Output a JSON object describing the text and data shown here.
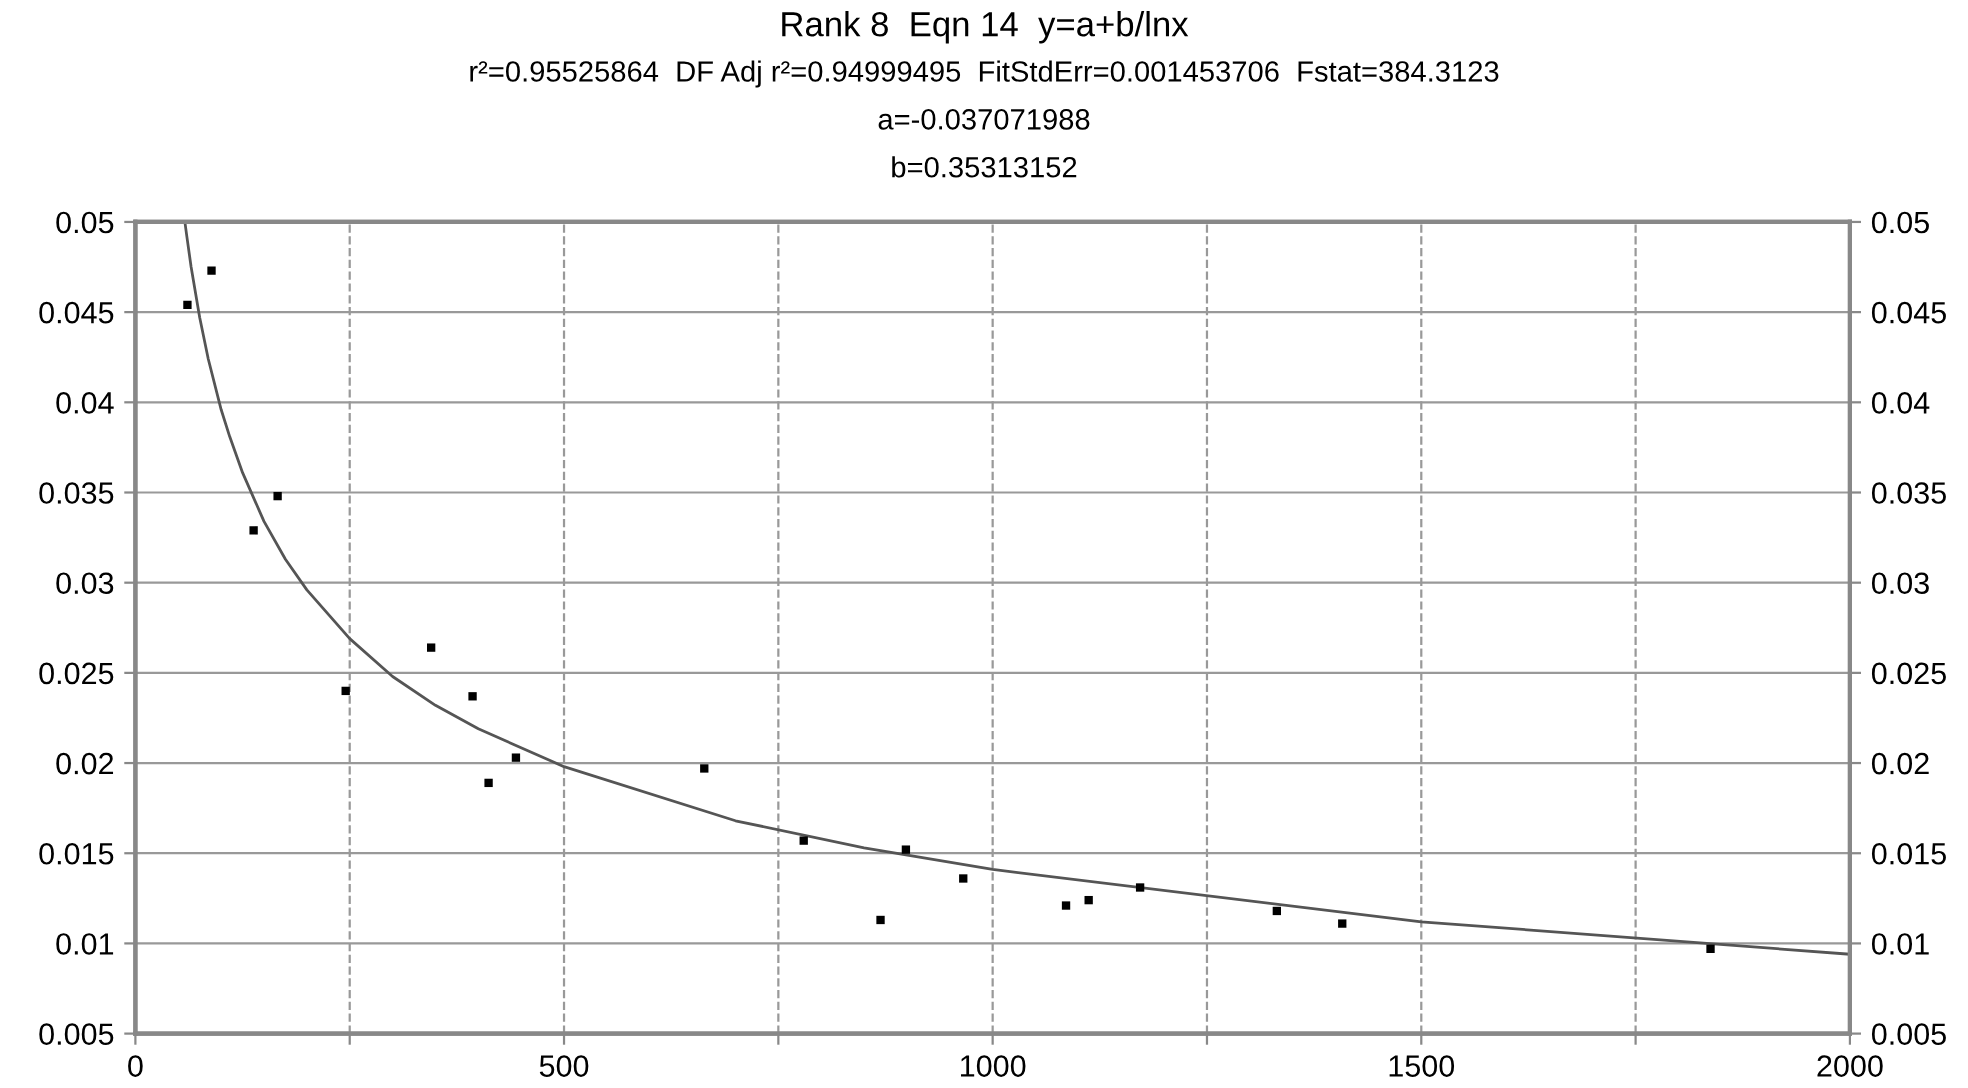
{
  "chart_data": {
    "type": "scatter",
    "title": "Rank 8  Eqn 14  y=a+b/lnx",
    "subtitle": "r²=0.95525864  DF Adj r²=0.94999495  FitStdErr=0.001453706  Fstat=384.3123",
    "annotations": [
      "a=-0.037071988",
      "b=0.35313152"
    ],
    "series": [
      {
        "color": "#000000",
        "marker": "square",
        "x": [
          60.7,
          88.8,
          137.9,
          165.9,
          245.3,
          345.0,
          393.3,
          412.0,
          443.9,
          663.6,
          779.6,
          869.2,
          898.8,
          965.7,
          1085.6,
          1112,
          1172,
          1331.5,
          1407.8,
          1837.4
        ],
        "values": [
          0.0454,
          0.0473,
          0.0329,
          0.0348,
          0.024,
          0.0264,
          0.0237,
          0.0189,
          0.0203,
          0.0197,
          0.0157,
          0.0113,
          0.0152,
          0.0136,
          0.0121,
          0.0124,
          0.0131,
          0.0118,
          0.0111,
          0.0097
        ]
      },
      {
        "type": "line",
        "color": "#555555",
        "line_style": "solid",
        "x": [
          58,
          60,
          65,
          75,
          85,
          100,
          110,
          125,
          150,
          175,
          200,
          250,
          300,
          350,
          400,
          500,
          700,
          850,
          1000,
          1500,
          2000
        ],
        "values": [
          0.0499,
          0.0492,
          0.0475,
          0.0447,
          0.0424,
          0.0396,
          0.0381,
          0.0361,
          0.0334,
          0.0313,
          0.0296,
          0.0269,
          0.0248,
          0.0232,
          0.0219,
          0.0198,
          0.0168,
          0.0153,
          0.0141,
          0.0112,
          0.0094
        ]
      }
    ],
    "xlim": [
      0,
      2000
    ],
    "xticks": [
      0,
      {
        "value": 250,
        "label": null
      },
      500,
      {
        "value": 750,
        "label": null
      },
      1000,
      {
        "value": 1250,
        "label": null
      },
      1500,
      {
        "value": 1750,
        "label": null
      },
      2000
    ],
    "ylim": [
      0.005,
      0.05
    ],
    "yticks": [
      0.005,
      0.01,
      0.015,
      0.02,
      0.025,
      0.03,
      0.035,
      0.04,
      0.045,
      0.05
    ],
    "y2lim": [
      0.005,
      0.05
    ],
    "y2ticks": [
      0.005,
      0.01,
      0.015,
      0.02,
      0.025,
      0.03,
      0.035,
      0.04,
      0.045,
      0.05
    ],
    "grid": true
  }
}
